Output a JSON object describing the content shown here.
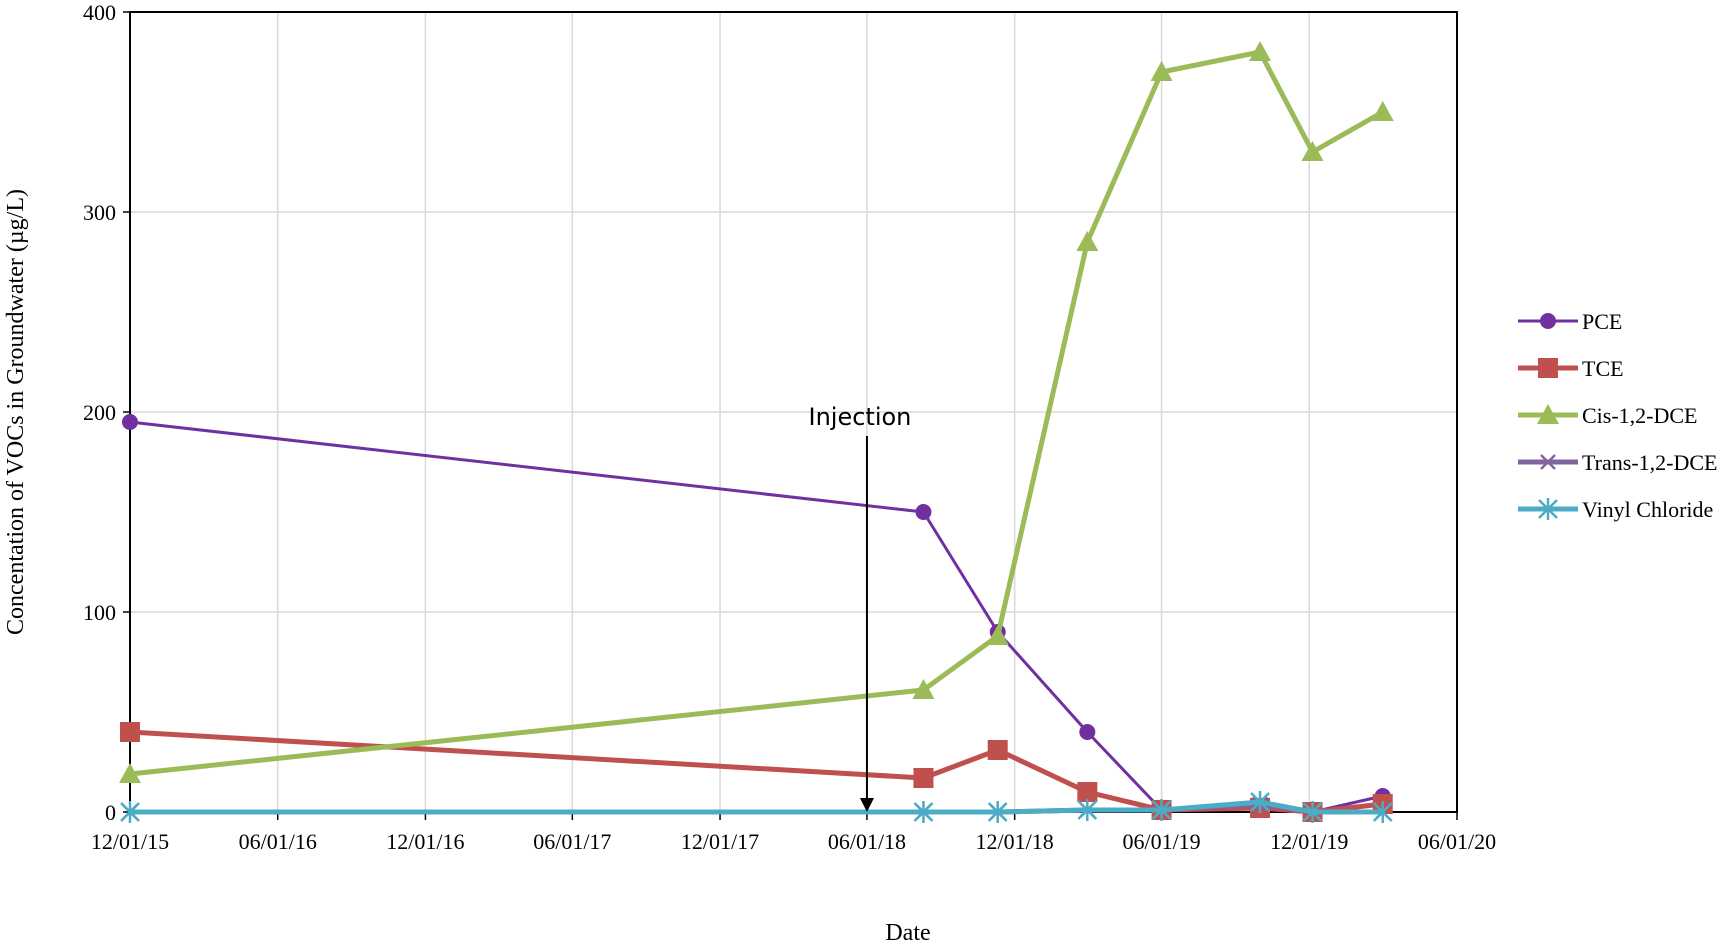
{
  "chart_data": {
    "type": "line",
    "xlabel": "Date",
    "ylabel": "Concentation of VOCs in Groundwater (µg/L)",
    "x_axis": {
      "scale": "date",
      "range": [
        "2015-12-01",
        "2020-06-01"
      ],
      "tick_dates": [
        "2015-12-01",
        "2016-06-01",
        "2016-12-01",
        "2017-06-01",
        "2017-12-01",
        "2018-06-01",
        "2018-12-01",
        "2019-06-01",
        "2019-12-01",
        "2020-06-01"
      ],
      "tick_labels": [
        "12/01/15",
        "06/01/16",
        "12/01/16",
        "06/01/17",
        "12/01/17",
        "06/01/18",
        "12/01/18",
        "06/01/19",
        "12/01/19",
        "06/01/20"
      ]
    },
    "y_axis": {
      "range": [
        0,
        400
      ],
      "ticks": [
        0,
        100,
        200,
        300,
        400
      ],
      "tick_labels": [
        "0",
        "100",
        "200",
        "300",
        "400"
      ]
    },
    "grid": true,
    "legend_position": "right",
    "annotation": {
      "text": "Injection",
      "date": "2018-06-01",
      "value": 0
    },
    "series": [
      {
        "name": "PCE",
        "color": "#7030A0",
        "marker": "circle",
        "line_width": 3,
        "x": [
          "2015-12-01",
          "2018-08-10",
          "2018-11-10",
          "2019-03-01",
          "2019-06-01",
          "2019-10-01",
          "2019-12-05",
          "2020-03-01"
        ],
        "y": [
          195,
          150,
          90,
          40,
          1,
          3,
          0,
          8
        ]
      },
      {
        "name": "TCE",
        "color": "#C0504D",
        "marker": "square",
        "line_width": 5,
        "x": [
          "2015-12-01",
          "2018-08-10",
          "2018-11-10",
          "2019-03-01",
          "2019-06-01",
          "2019-10-01",
          "2019-12-05",
          "2020-03-01"
        ],
        "y": [
          40,
          17,
          31,
          10,
          1,
          2,
          0,
          4
        ]
      },
      {
        "name": "Cis-1,2-DCE",
        "color": "#9BBB59",
        "marker": "triangle",
        "line_width": 5,
        "x": [
          "2015-12-01",
          "2018-08-10",
          "2018-11-10",
          "2019-03-01",
          "2019-06-01",
          "2019-10-01",
          "2019-12-05",
          "2020-03-01"
        ],
        "y": [
          19,
          61,
          88,
          285,
          370,
          380,
          330,
          350
        ]
      },
      {
        "name": "Trans-1,2-DCE",
        "color": "#8064A2",
        "marker": "x",
        "line_width": 5,
        "x": [
          "2015-12-01",
          "2018-08-10",
          "2018-11-10",
          "2019-03-01",
          "2019-06-01",
          "2019-10-01",
          "2019-12-05",
          "2020-03-01"
        ],
        "y": [
          0,
          0,
          0,
          1,
          1,
          4,
          0,
          0
        ]
      },
      {
        "name": "Vinyl Chloride",
        "color": "#4BACC6",
        "marker": "star",
        "line_width": 5,
        "x": [
          "2015-12-01",
          "2018-08-10",
          "2018-11-10",
          "2019-03-01",
          "2019-06-01",
          "2019-10-01",
          "2019-12-05",
          "2020-03-01"
        ],
        "y": [
          0,
          0,
          0,
          1,
          1,
          5,
          0,
          0
        ]
      }
    ]
  }
}
